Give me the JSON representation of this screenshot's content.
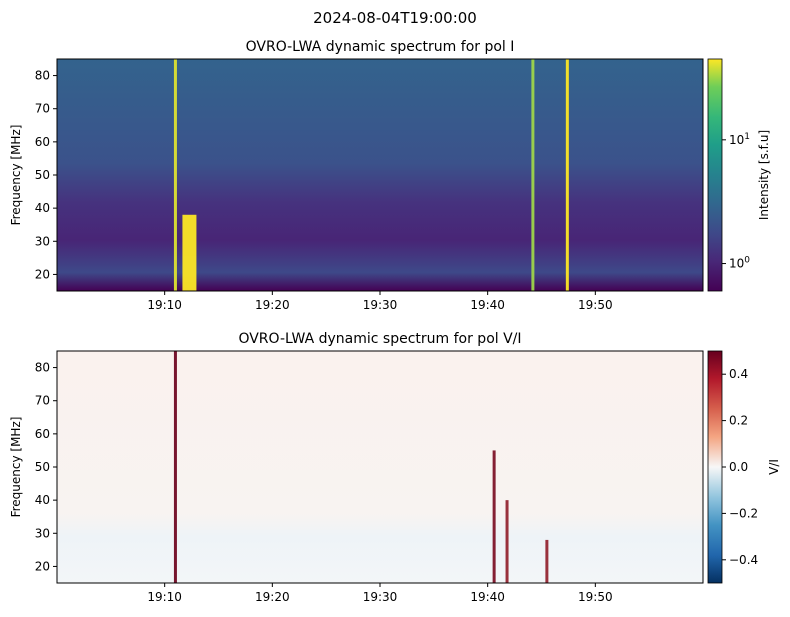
{
  "suptitle": "2024-08-04T19:00:00",
  "chart_data": [
    {
      "type": "heatmap",
      "title": "OVRO-LWA dynamic spectrum for pol I",
      "ylabel": "Frequency [MHz]",
      "xlabel": "",
      "x_range": [
        "19:00",
        "20:00"
      ],
      "x_ticks": [
        "19:10",
        "19:20",
        "19:30",
        "19:40",
        "19:50"
      ],
      "ylim": [
        15,
        85
      ],
      "y_ticks": [
        20,
        30,
        40,
        50,
        60,
        70,
        80
      ],
      "colormap": "viridis",
      "color_scale": "log",
      "colorbar_label": "Intensity [s.f.u]",
      "colorbar_range": [
        0.6,
        45
      ],
      "colorbar_ticks": [
        "10^0",
        "10^1"
      ],
      "features": [
        {
          "time_min": 11.0,
          "fmin": 15,
          "fmax": 85,
          "level": 0.95
        },
        {
          "time_min": 12.3,
          "fmin": 15,
          "fmax": 38,
          "level": 1.0
        },
        {
          "time_min": 44.2,
          "fmin": 15,
          "fmax": 85,
          "level": 0.85
        },
        {
          "time_min": 47.4,
          "fmin": 15,
          "fmax": 85,
          "level": 1.0
        }
      ]
    },
    {
      "type": "heatmap",
      "title": "OVRO-LWA dynamic spectrum for pol V/I",
      "ylabel": "Frequency [MHz]",
      "xlabel": "",
      "x_range": [
        "19:00",
        "20:00"
      ],
      "x_ticks": [
        "19:10",
        "19:20",
        "19:30",
        "19:40",
        "19:50"
      ],
      "ylim": [
        15,
        85
      ],
      "y_ticks": [
        20,
        30,
        40,
        50,
        60,
        70,
        80
      ],
      "colormap": "RdBu_r",
      "colorbar_label": "V/I",
      "colorbar_range": [
        -0.5,
        0.5
      ],
      "colorbar_ticks": [
        "−0.4",
        "−0.2",
        "0.0",
        "0.2",
        "0.4"
      ],
      "features": [
        {
          "time_min": 11.0,
          "fmin": 15,
          "fmax": 85,
          "value": 0.48
        },
        {
          "time_min": 40.6,
          "fmin": 15,
          "fmax": 55,
          "value": 0.45
        },
        {
          "time_min": 41.8,
          "fmin": 15,
          "fmax": 40,
          "value": 0.4
        },
        {
          "time_min": 45.5,
          "fmin": 15,
          "fmax": 28,
          "value": 0.4
        }
      ]
    }
  ]
}
